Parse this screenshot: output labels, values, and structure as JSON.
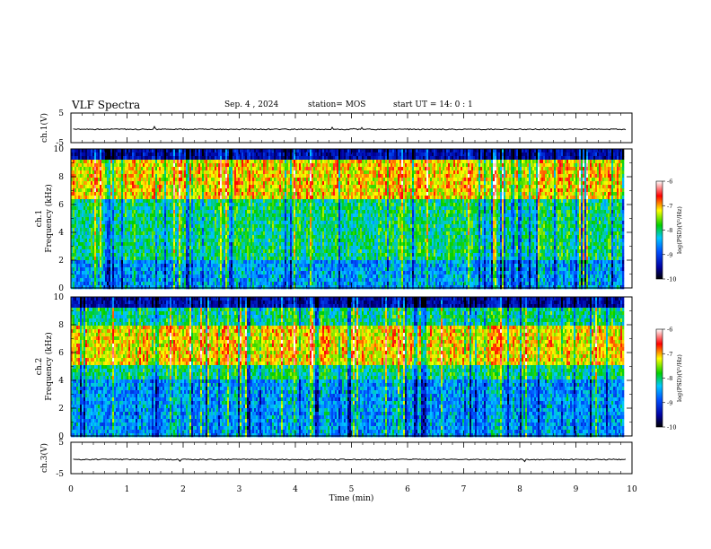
{
  "header": {
    "title": "VLF Spectra",
    "date": "Sep. 4 , 2024",
    "station": "station= MOS",
    "start": "start UT =   14: 0  : 1"
  },
  "chart_data": [
    {
      "type": "line",
      "name": "ch1-waveform",
      "ylabel": "ch.1(V)",
      "ylim": [
        -5,
        5
      ],
      "yticks": [
        "5",
        "-5"
      ],
      "xlim": [
        0,
        10
      ],
      "level": -0.5
    },
    {
      "type": "heatmap",
      "name": "ch1-spectrogram",
      "ylabel": "ch.1 Frequency (kHz)",
      "ylabel_lines": [
        "ch.1",
        "Frequency (kHz)"
      ],
      "xlim": [
        0,
        10
      ],
      "data_end_min": 9.83,
      "ylim": [
        0,
        10
      ],
      "yticks": [
        "0",
        "2",
        "4",
        "6",
        "8",
        "10"
      ],
      "colorbar": {
        "label": "log(PSD)(V²/Hz)",
        "range": [
          -10,
          -6
        ],
        "ticks": [
          "-6",
          "-7",
          "-8",
          "-9",
          "-10"
        ]
      },
      "profile": {
        "peak_band_khz": [
          6.5,
          9.5
        ],
        "low_band_khz": [
          0,
          2
        ]
      }
    },
    {
      "type": "heatmap",
      "name": "ch2-spectrogram",
      "ylabel": "ch.2 Frequency (kHz)",
      "ylabel_lines": [
        "ch.2",
        "Frequency (kHz)"
      ],
      "xlim": [
        0,
        10
      ],
      "data_end_min": 9.83,
      "ylim": [
        0,
        10
      ],
      "yticks": [
        "0",
        "2",
        "4",
        "6",
        "8",
        "10"
      ],
      "colorbar": {
        "label": "log(PSD)(V²/Hz)",
        "range": [
          -10,
          -6
        ],
        "ticks": [
          "-6",
          "-7",
          "-8",
          "-9",
          "-10"
        ]
      },
      "profile": {
        "peak_band_khz": [
          5.0,
          8.0
        ],
        "low_band_khz": [
          0,
          4
        ]
      }
    },
    {
      "type": "line",
      "name": "ch3-waveform",
      "ylabel": "ch.3(V)",
      "ylim": [
        -5,
        5
      ],
      "yticks": [
        "5",
        "-5"
      ],
      "xlim": [
        0,
        10
      ],
      "level": -0.5
    }
  ],
  "xaxis": {
    "label": "Time (min)",
    "ticks": [
      "0",
      "1",
      "2",
      "3",
      "4",
      "5",
      "6",
      "7",
      "8",
      "9",
      "10"
    ]
  }
}
